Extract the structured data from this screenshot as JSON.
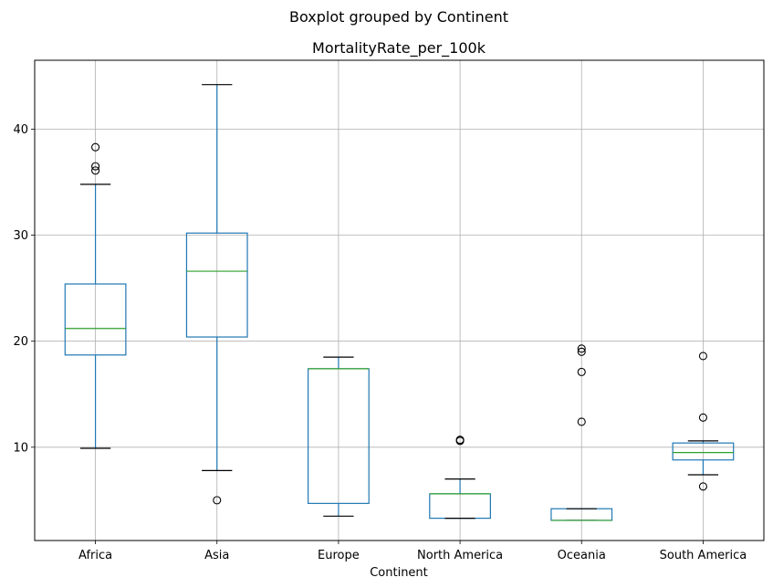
{
  "chart_data": {
    "type": "boxplot",
    "suptitle": "Boxplot grouped by Continent",
    "title": "MortalityRate_per_100k",
    "xlabel": "Continent",
    "ylabel": "",
    "ylim": [
      1.2,
      46.5
    ],
    "yticks": [
      10,
      20,
      30,
      40
    ],
    "grid": true,
    "colors": {
      "box": "#1f77b4",
      "median": "#2ca02c",
      "whisker_cap": "#000000",
      "grid": "#b0b0b0"
    },
    "categories": [
      "Africa",
      "Asia",
      "Europe",
      "North America",
      "Oceania",
      "South America"
    ],
    "boxes": [
      {
        "category": "Africa",
        "whislo": 9.9,
        "q1": 18.7,
        "med": 21.2,
        "q3": 25.4,
        "whishi": 34.8,
        "fliers": [
          36.1,
          36.5,
          38.3
        ]
      },
      {
        "category": "Asia",
        "whislo": 7.8,
        "q1": 20.4,
        "med": 26.6,
        "q3": 30.2,
        "whishi": 44.2,
        "fliers": [
          5.0
        ]
      },
      {
        "category": "Europe",
        "whislo": 3.5,
        "q1": 4.7,
        "med": 17.4,
        "q3": 17.4,
        "whishi": 18.5,
        "fliers": []
      },
      {
        "category": "North America",
        "whislo": 3.3,
        "q1": 3.3,
        "med": 5.6,
        "q3": 5.6,
        "whishi": 7.0,
        "fliers": [
          10.6,
          10.7
        ]
      },
      {
        "category": "Oceania",
        "whislo": 3.1,
        "q1": 3.1,
        "med": 3.1,
        "q3": 4.2,
        "whishi": 4.2,
        "fliers": [
          12.4,
          17.1,
          19.0,
          19.3
        ]
      },
      {
        "category": "South America",
        "whislo": 7.4,
        "q1": 8.8,
        "med": 9.5,
        "q3": 10.4,
        "whishi": 10.6,
        "fliers": [
          6.3,
          12.8,
          18.6
        ]
      }
    ]
  }
}
